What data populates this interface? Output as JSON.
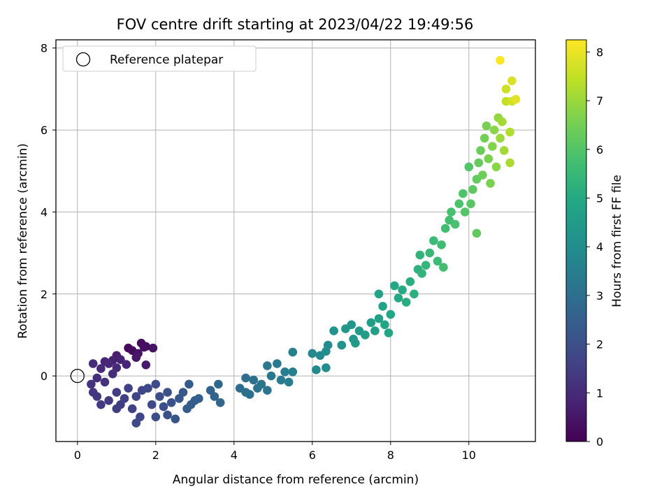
{
  "chart_data": {
    "type": "scatter",
    "title": "FOV centre drift starting at 2023/04/22 19:49:56",
    "xlabel": "Angular distance from reference (arcmin)",
    "ylabel": "Rotation from reference (arcmin)",
    "xlim": [
      -0.55,
      11.7
    ],
    "ylim": [
      -1.6,
      8.2
    ],
    "xticks": [
      0,
      2,
      4,
      6,
      8,
      10
    ],
    "yticks": [
      0,
      2,
      4,
      6,
      8
    ],
    "grid": true,
    "legend": {
      "position": "top-left",
      "entries": [
        "Reference platepar"
      ]
    },
    "reference_point": {
      "x": 0,
      "y": 0
    },
    "colorbar": {
      "label": "Hours from first FF file",
      "range": [
        0,
        8.25
      ],
      "ticks": [
        0,
        1,
        2,
        3,
        4,
        5,
        6,
        7,
        8
      ],
      "colormap": "viridis"
    },
    "series": [
      {
        "columns": [
          "x",
          "y",
          "hours"
        ],
        "points": [
          [
            1.3,
            0.68,
            0.2
          ],
          [
            1.4,
            0.62,
            0.22
          ],
          [
            1.63,
            0.8,
            0.3
          ],
          [
            1.75,
            0.72,
            0.35
          ],
          [
            1.93,
            0.68,
            0.4
          ],
          [
            1.55,
            0.55,
            0.45
          ],
          [
            1.7,
            0.7,
            0.35
          ],
          [
            1.5,
            0.45,
            0.55
          ],
          [
            1.75,
            0.27,
            0.6
          ],
          [
            1.0,
            0.5,
            0.7
          ],
          [
            0.9,
            0.38,
            0.75
          ],
          [
            1.1,
            0.4,
            0.8
          ],
          [
            1.25,
            0.28,
            0.85
          ],
          [
            0.7,
            0.35,
            0.85
          ],
          [
            0.8,
            0.3,
            0.9
          ],
          [
            1.0,
            0.2,
            1.0
          ],
          [
            0.6,
            0.18,
            1.0
          ],
          [
            0.9,
            0.05,
            1.05
          ],
          [
            0.4,
            0.3,
            1.1
          ],
          [
            0.5,
            -0.05,
            1.1
          ],
          [
            0.7,
            -0.15,
            1.2
          ],
          [
            0.35,
            -0.2,
            1.25
          ],
          [
            0.4,
            -0.4,
            1.3
          ],
          [
            0.5,
            -0.5,
            1.35
          ],
          [
            0.6,
            -0.7,
            1.4
          ],
          [
            0.8,
            -0.6,
            1.4
          ],
          [
            1.0,
            -0.4,
            1.45
          ],
          [
            1.1,
            -0.7,
            1.5
          ],
          [
            1.0,
            -0.8,
            1.5
          ],
          [
            1.2,
            -0.55,
            1.55
          ],
          [
            1.3,
            -0.3,
            1.6
          ],
          [
            1.4,
            -0.8,
            1.6
          ],
          [
            1.5,
            -0.5,
            1.65
          ],
          [
            1.65,
            -0.35,
            1.7
          ],
          [
            1.6,
            -1.0,
            1.75
          ],
          [
            1.5,
            -1.15,
            1.8
          ],
          [
            1.8,
            -0.3,
            1.8
          ],
          [
            1.9,
            -0.7,
            1.85
          ],
          [
            2.0,
            -0.2,
            1.9
          ],
          [
            2.1,
            -0.5,
            1.95
          ],
          [
            2.0,
            -1.0,
            1.95
          ],
          [
            2.2,
            -0.75,
            2.0
          ],
          [
            2.3,
            -0.4,
            2.05
          ],
          [
            2.4,
            -0.65,
            2.1
          ],
          [
            2.3,
            -0.95,
            2.1
          ],
          [
            2.5,
            -1.05,
            2.2
          ],
          [
            2.6,
            -0.55,
            2.25
          ],
          [
            2.7,
            -0.4,
            2.3
          ],
          [
            2.8,
            -0.8,
            2.35
          ],
          [
            2.85,
            -0.2,
            2.4
          ],
          [
            3.0,
            -0.6,
            2.45
          ],
          [
            2.9,
            -0.7,
            2.45
          ],
          [
            3.1,
            -0.55,
            2.5
          ],
          [
            3.4,
            -0.35,
            2.6
          ],
          [
            3.5,
            -0.5,
            2.65
          ],
          [
            3.6,
            -0.2,
            2.7
          ],
          [
            3.65,
            -0.65,
            2.75
          ],
          [
            4.15,
            -0.3,
            2.95
          ],
          [
            4.3,
            -0.4,
            3.0
          ],
          [
            4.4,
            -0.45,
            3.05
          ],
          [
            4.3,
            -0.05,
            3.0
          ],
          [
            4.5,
            -0.1,
            3.05
          ],
          [
            4.6,
            -0.3,
            3.1
          ],
          [
            4.7,
            -0.2,
            3.15
          ],
          [
            4.85,
            -0.35,
            3.2
          ],
          [
            4.85,
            0.25,
            3.25
          ],
          [
            4.95,
            0.0,
            3.3
          ],
          [
            5.1,
            0.3,
            3.35
          ],
          [
            5.2,
            -0.1,
            3.4
          ],
          [
            5.3,
            0.1,
            3.45
          ],
          [
            5.4,
            -0.15,
            3.5
          ],
          [
            5.5,
            0.58,
            3.55
          ],
          [
            5.5,
            0.1,
            3.6
          ],
          [
            6.0,
            0.55,
            3.85
          ],
          [
            6.1,
            0.15,
            3.9
          ],
          [
            6.2,
            0.5,
            3.95
          ],
          [
            6.35,
            0.6,
            4.0
          ],
          [
            6.4,
            0.75,
            4.05
          ],
          [
            6.35,
            0.2,
            4.0
          ],
          [
            6.55,
            1.1,
            4.2
          ],
          [
            6.75,
            0.75,
            4.25
          ],
          [
            6.85,
            1.15,
            4.3
          ],
          [
            7.0,
            1.25,
            4.35
          ],
          [
            7.05,
            0.9,
            4.4
          ],
          [
            7.1,
            0.8,
            4.45
          ],
          [
            7.2,
            1.1,
            4.5
          ],
          [
            7.35,
            1.0,
            4.55
          ],
          [
            7.5,
            1.3,
            4.6
          ],
          [
            7.6,
            1.1,
            4.65
          ],
          [
            7.7,
            1.4,
            4.7
          ],
          [
            7.8,
            1.7,
            4.75
          ],
          [
            7.7,
            2.0,
            4.75
          ],
          [
            7.85,
            1.25,
            4.8
          ],
          [
            7.95,
            1.05,
            4.85
          ],
          [
            8.0,
            1.5,
            4.9
          ],
          [
            8.1,
            2.2,
            4.95
          ],
          [
            8.2,
            1.9,
            5.0
          ],
          [
            8.3,
            2.1,
            5.05
          ],
          [
            8.4,
            1.8,
            5.1
          ],
          [
            8.5,
            2.3,
            5.15
          ],
          [
            8.6,
            2.0,
            5.2
          ],
          [
            8.7,
            2.6,
            5.25
          ],
          [
            8.75,
            2.95,
            5.3
          ],
          [
            8.8,
            2.5,
            5.35
          ],
          [
            8.9,
            2.7,
            5.4
          ],
          [
            9.0,
            3.0,
            5.5
          ],
          [
            9.1,
            3.3,
            5.55
          ],
          [
            9.2,
            2.8,
            5.6
          ],
          [
            9.3,
            3.2,
            5.65
          ],
          [
            9.4,
            3.6,
            5.7
          ],
          [
            9.35,
            2.65,
            5.7
          ],
          [
            9.5,
            3.8,
            5.75
          ],
          [
            9.55,
            4.0,
            5.8
          ],
          [
            9.65,
            3.7,
            5.85
          ],
          [
            9.75,
            4.2,
            5.9
          ],
          [
            9.85,
            4.45,
            5.95
          ],
          [
            9.9,
            4.0,
            6.0
          ],
          [
            10.0,
            5.1,
            6.0
          ],
          [
            10.05,
            4.2,
            6.1
          ],
          [
            10.1,
            4.55,
            6.15
          ],
          [
            10.2,
            3.48,
            6.2
          ],
          [
            10.2,
            4.8,
            6.25
          ],
          [
            10.25,
            5.2,
            6.3
          ],
          [
            10.3,
            5.5,
            6.35
          ],
          [
            10.35,
            4.9,
            6.4
          ],
          [
            10.4,
            5.8,
            6.5
          ],
          [
            10.45,
            6.1,
            6.55
          ],
          [
            10.5,
            5.3,
            6.6
          ],
          [
            10.55,
            4.7,
            6.6
          ],
          [
            10.6,
            5.6,
            6.7
          ],
          [
            10.65,
            6.0,
            6.8
          ],
          [
            10.7,
            5.1,
            6.8
          ],
          [
            10.75,
            6.3,
            6.9
          ],
          [
            10.8,
            5.8,
            7.0
          ],
          [
            10.85,
            6.2,
            7.1
          ],
          [
            10.9,
            5.5,
            7.1
          ],
          [
            10.95,
            6.7,
            7.5
          ],
          [
            10.95,
            7.0,
            7.6
          ],
          [
            11.05,
            5.95,
            7.3
          ],
          [
            11.05,
            5.2,
            7.2
          ],
          [
            11.1,
            6.7,
            7.7
          ],
          [
            11.1,
            7.2,
            7.8
          ],
          [
            11.2,
            6.75,
            7.9
          ],
          [
            10.8,
            7.7,
            8.2
          ]
        ]
      }
    ]
  }
}
